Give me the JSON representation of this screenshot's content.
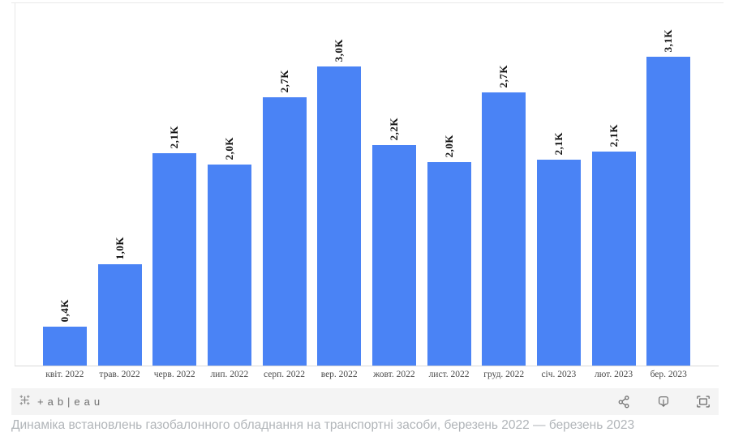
{
  "chart_data": {
    "type": "bar",
    "title": "",
    "xlabel": "",
    "ylabel": "",
    "grid": false,
    "legend": false,
    "bar_color": "#4a83f5",
    "ylim": [
      0,
      3650
    ],
    "categories": [
      "квіт. 2022",
      "трав. 2022",
      "черв. 2022",
      "лип. 2022",
      "серп. 2022",
      "вер. 2022",
      "жовт. 2022",
      "лист. 2022",
      "груд. 2022",
      "січ. 2023",
      "лют. 2023",
      "бер. 2023"
    ],
    "values": [
      390,
      1020,
      2130,
      2020,
      2690,
      3000,
      2210,
      2040,
      2740,
      2070,
      2150,
      3100
    ],
    "value_labels": [
      "0,4K",
      "1,0K",
      "2,1K",
      "2,0K",
      "2,7K",
      "3,0K",
      "2,2K",
      "2,0K",
      "2,7K",
      "2,1K",
      "2,1K",
      "3,1K"
    ]
  },
  "toolbar": {
    "logo_text": "+ab|eau",
    "icons": [
      "share-icon",
      "download-icon",
      "fullscreen-icon"
    ]
  },
  "caption": "Динаміка встановлень газобалонного обладнання на транспортні засоби, березень 2022 — березень 2023"
}
